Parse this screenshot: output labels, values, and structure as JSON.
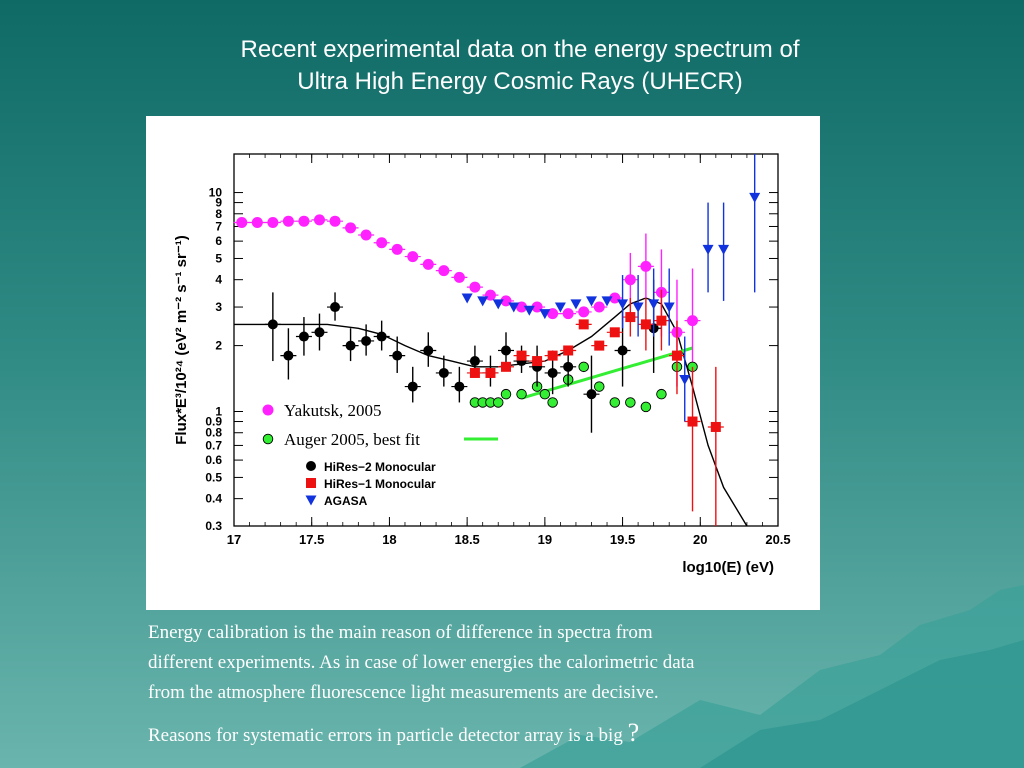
{
  "slide": {
    "title_line1": "Recent experimental data on the energy spectrum of",
    "title_line2": "Ultra High Energy Cosmic Rays (UHECR)",
    "caption": {
      "line1": "Energy calibration is the main reason of difference in spectra from",
      "line2": "different experiments. As in case of lower energies the calorimetric data",
      "line3": "from the atmosphere fluorescence light measurements are decisive.",
      "line4": "Reasons for systematic errors in particle detector array is a big",
      "line4_mark": "?"
    },
    "colors": {
      "background_top": "#0f6a66",
      "background_bottom": "#6ab5ad"
    }
  },
  "chart_data": {
    "type": "scatter",
    "xlabel": "log10(E) (eV)",
    "ylabel": "Flux*E³/10²⁴ (eV² m⁻² s⁻¹ sr⁻¹)",
    "xlim": [
      17,
      20.5
    ],
    "ylim": [
      0.3,
      15
    ],
    "yscale": "log",
    "xticks": [
      "17",
      "17.5",
      "18",
      "18.5",
      "19",
      "19.5",
      "20",
      "20.5"
    ],
    "yticks": [
      {
        "v": 0.3,
        "label": "0.3"
      },
      {
        "v": 0.4,
        "label": "0.4"
      },
      {
        "v": 0.5,
        "label": "0.5"
      },
      {
        "v": 0.6,
        "label": "0.6"
      },
      {
        "v": 0.7,
        "label": "0.7"
      },
      {
        "v": 0.8,
        "label": "0.8"
      },
      {
        "v": 0.9,
        "label": "0.9"
      },
      {
        "v": 1,
        "label": "1"
      },
      {
        "v": 2,
        "label": "2"
      },
      {
        "v": 3,
        "label": "3"
      },
      {
        "v": 4,
        "label": "4"
      },
      {
        "v": 5,
        "label": "5"
      },
      {
        "v": 6,
        "label": "6"
      },
      {
        "v": 7,
        "label": "7"
      },
      {
        "v": 8,
        "label": "8"
      },
      {
        "v": 9,
        "label": "9"
      },
      {
        "v": 10,
        "label": "10"
      }
    ],
    "legend": [
      {
        "label": "Yakutsk, 2005",
        "color": "#ff22ff",
        "marker": "circle",
        "style": "large"
      },
      {
        "label": "Auger 2005, best fit",
        "color": "#33ee33",
        "marker": "circle-outline",
        "style": "large",
        "line": true
      },
      {
        "label": "HiRes−2 Monocular",
        "color": "#000000",
        "marker": "circle",
        "style": "small"
      },
      {
        "label": "HiRes−1 Monocular",
        "color": "#ee1111",
        "marker": "square",
        "style": "small"
      },
      {
        "label": "AGASA",
        "color": "#1133dd",
        "marker": "triangle-down",
        "style": "small"
      }
    ],
    "series": [
      {
        "name": "Yakutsk, 2005",
        "color": "#ff22ff",
        "marker": "circle",
        "points": [
          {
            "x": 17.05,
            "y": 7.3
          },
          {
            "x": 17.15,
            "y": 7.3
          },
          {
            "x": 17.25,
            "y": 7.3
          },
          {
            "x": 17.35,
            "y": 7.4
          },
          {
            "x": 17.45,
            "y": 7.4
          },
          {
            "x": 17.55,
            "y": 7.5
          },
          {
            "x": 17.65,
            "y": 7.4
          },
          {
            "x": 17.75,
            "y": 6.9
          },
          {
            "x": 17.85,
            "y": 6.4
          },
          {
            "x": 17.95,
            "y": 5.9
          },
          {
            "x": 18.05,
            "y": 5.5
          },
          {
            "x": 18.15,
            "y": 5.1
          },
          {
            "x": 18.25,
            "y": 4.7
          },
          {
            "x": 18.35,
            "y": 4.4
          },
          {
            "x": 18.45,
            "y": 4.1
          },
          {
            "x": 18.55,
            "y": 3.7
          },
          {
            "x": 18.65,
            "y": 3.4
          },
          {
            "x": 18.75,
            "y": 3.2
          },
          {
            "x": 18.85,
            "y": 3.0
          },
          {
            "x": 18.95,
            "y": 3.0
          },
          {
            "x": 19.05,
            "y": 2.8
          },
          {
            "x": 19.15,
            "y": 2.8
          },
          {
            "x": 19.25,
            "y": 2.85
          },
          {
            "x": 19.35,
            "y": 3.0
          },
          {
            "x": 19.45,
            "y": 3.3
          },
          {
            "x": 19.55,
            "y": 4.0,
            "e": [
              3.0,
              5.3
            ]
          },
          {
            "x": 19.65,
            "y": 4.6,
            "e": [
              3.3,
              6.5
            ]
          },
          {
            "x": 19.75,
            "y": 3.5,
            "e": [
              2.2,
              5.5
            ]
          },
          {
            "x": 19.85,
            "y": 2.3,
            "e": [
              1.3,
              4.0
            ]
          },
          {
            "x": 19.95,
            "y": 2.6,
            "e": [
              1.5,
              4.5
            ]
          }
        ]
      },
      {
        "name": "Auger 2005, best fit",
        "color": "#33ee33",
        "marker": "circle-outline",
        "points": [
          {
            "x": 18.55,
            "y": 1.1
          },
          {
            "x": 18.6,
            "y": 1.1
          },
          {
            "x": 18.65,
            "y": 1.1
          },
          {
            "x": 18.7,
            "y": 1.1
          },
          {
            "x": 18.75,
            "y": 1.2
          },
          {
            "x": 18.85,
            "y": 1.2
          },
          {
            "x": 18.95,
            "y": 1.3
          },
          {
            "x": 19.0,
            "y": 1.2
          },
          {
            "x": 19.05,
            "y": 1.1
          },
          {
            "x": 19.15,
            "y": 1.4
          },
          {
            "x": 19.25,
            "y": 1.6
          },
          {
            "x": 19.35,
            "y": 1.3
          },
          {
            "x": 19.45,
            "y": 1.1
          },
          {
            "x": 19.55,
            "y": 1.1
          },
          {
            "x": 19.65,
            "y": 1.05
          },
          {
            "x": 19.75,
            "y": 1.2
          },
          {
            "x": 19.85,
            "y": 1.6
          },
          {
            "x": 19.95,
            "y": 1.6
          }
        ]
      },
      {
        "name": "HiRes−2 Monocular",
        "color": "#000000",
        "marker": "circle",
        "points": [
          {
            "x": 17.25,
            "y": 2.5,
            "e": [
              1.7,
              3.5
            ]
          },
          {
            "x": 17.35,
            "y": 1.8,
            "e": [
              1.4,
              2.4
            ]
          },
          {
            "x": 17.45,
            "y": 2.2,
            "e": [
              1.8,
              2.7
            ]
          },
          {
            "x": 17.55,
            "y": 2.3,
            "e": [
              1.9,
              2.8
            ]
          },
          {
            "x": 17.65,
            "y": 3.0,
            "e": [
              2.6,
              3.5
            ]
          },
          {
            "x": 17.75,
            "y": 2.0,
            "e": [
              1.7,
              2.4
            ]
          },
          {
            "x": 17.85,
            "y": 2.1,
            "e": [
              1.8,
              2.5
            ]
          },
          {
            "x": 17.95,
            "y": 2.2,
            "e": [
              1.9,
              2.6
            ]
          },
          {
            "x": 18.05,
            "y": 1.8,
            "e": [
              1.5,
              2.2
            ]
          },
          {
            "x": 18.15,
            "y": 1.3,
            "e": [
              1.1,
              1.6
            ]
          },
          {
            "x": 18.25,
            "y": 1.9,
            "e": [
              1.6,
              2.3
            ]
          },
          {
            "x": 18.35,
            "y": 1.5,
            "e": [
              1.3,
              1.8
            ]
          },
          {
            "x": 18.45,
            "y": 1.3,
            "e": [
              1.1,
              1.6
            ]
          },
          {
            "x": 18.55,
            "y": 1.7,
            "e": [
              1.5,
              2.0
            ]
          },
          {
            "x": 18.65,
            "y": 1.5,
            "e": [
              1.3,
              1.8
            ]
          },
          {
            "x": 18.75,
            "y": 1.9,
            "e": [
              1.6,
              2.3
            ]
          },
          {
            "x": 18.85,
            "y": 1.7,
            "e": [
              1.5,
              2.0
            ]
          },
          {
            "x": 18.95,
            "y": 1.6,
            "e": [
              1.3,
              2.0
            ]
          },
          {
            "x": 19.05,
            "y": 1.5,
            "e": [
              1.2,
              1.9
            ]
          },
          {
            "x": 19.15,
            "y": 1.6,
            "e": [
              1.3,
              2.0
            ]
          },
          {
            "x": 19.3,
            "y": 1.2,
            "e": [
              0.8,
              1.8
            ]
          },
          {
            "x": 19.5,
            "y": 1.9,
            "e": [
              1.3,
              2.9
            ]
          },
          {
            "x": 19.7,
            "y": 2.4,
            "e": [
              1.5,
              4.0
            ]
          }
        ]
      },
      {
        "name": "HiRes−1 Monocular",
        "color": "#ee1111",
        "marker": "square",
        "points": [
          {
            "x": 18.55,
            "y": 1.5
          },
          {
            "x": 18.65,
            "y": 1.5
          },
          {
            "x": 18.75,
            "y": 1.6
          },
          {
            "x": 18.85,
            "y": 1.8
          },
          {
            "x": 18.95,
            "y": 1.7
          },
          {
            "x": 19.05,
            "y": 1.8
          },
          {
            "x": 19.15,
            "y": 1.9
          },
          {
            "x": 19.25,
            "y": 2.5
          },
          {
            "x": 19.35,
            "y": 2.0
          },
          {
            "x": 19.45,
            "y": 2.3
          },
          {
            "x": 19.55,
            "y": 2.7,
            "e": [
              2.2,
              3.3
            ]
          },
          {
            "x": 19.65,
            "y": 2.5,
            "e": [
              1.9,
              3.3
            ]
          },
          {
            "x": 19.75,
            "y": 2.6,
            "e": [
              1.9,
              3.6
            ]
          },
          {
            "x": 19.85,
            "y": 1.8,
            "e": [
              1.2,
              2.6
            ]
          },
          {
            "x": 19.95,
            "y": 0.9,
            "e": [
              0.35,
              1.6
            ]
          },
          {
            "x": 20.1,
            "y": 0.85,
            "e": [
              0.3,
              1.6
            ]
          }
        ]
      },
      {
        "name": "AGASA",
        "color": "#1133dd",
        "marker": "triangle-down",
        "points": [
          {
            "x": 18.5,
            "y": 3.3
          },
          {
            "x": 18.6,
            "y": 3.2
          },
          {
            "x": 18.7,
            "y": 3.1
          },
          {
            "x": 18.8,
            "y": 3.0
          },
          {
            "x": 18.9,
            "y": 2.9
          },
          {
            "x": 19.0,
            "y": 2.8
          },
          {
            "x": 19.1,
            "y": 3.0
          },
          {
            "x": 19.2,
            "y": 3.1
          },
          {
            "x": 19.3,
            "y": 3.2
          },
          {
            "x": 19.4,
            "y": 3.2
          },
          {
            "x": 19.5,
            "y": 3.1,
            "e": [
              2.4,
              4.2
            ]
          },
          {
            "x": 19.6,
            "y": 3.0,
            "e": [
              2.2,
              4.2
            ]
          },
          {
            "x": 19.7,
            "y": 3.1,
            "e": [
              2.2,
              4.5
            ]
          },
          {
            "x": 19.8,
            "y": 3.0,
            "e": [
              2.0,
              4.5
            ]
          },
          {
            "x": 19.9,
            "y": 1.4,
            "e": [
              0.9,
              2.2
            ]
          },
          {
            "x": 20.05,
            "y": 5.5,
            "e": [
              3.5,
              9.0
            ]
          },
          {
            "x": 20.15,
            "y": 5.5,
            "e": [
              3.2,
              9.0
            ]
          },
          {
            "x": 20.35,
            "y": 9.5,
            "e": [
              3.5,
              15.0
            ]
          }
        ]
      }
    ],
    "fits": [
      {
        "name": "HiRes−2 Monocular fit",
        "color": "#000000",
        "points": [
          [
            17.0,
            2.5
          ],
          [
            17.4,
            2.5
          ],
          [
            17.6,
            2.5
          ],
          [
            17.8,
            2.4
          ],
          [
            17.95,
            2.25
          ],
          [
            18.1,
            2.0
          ],
          [
            18.25,
            1.8
          ],
          [
            18.4,
            1.7
          ],
          [
            18.55,
            1.6
          ],
          [
            18.7,
            1.6
          ],
          [
            18.85,
            1.65
          ],
          [
            19.0,
            1.7
          ],
          [
            19.15,
            1.9
          ],
          [
            19.3,
            2.2
          ],
          [
            19.45,
            2.7
          ],
          [
            19.55,
            3.1
          ],
          [
            19.65,
            3.3
          ],
          [
            19.75,
            3.1
          ],
          [
            19.85,
            2.3
          ],
          [
            19.95,
            1.3
          ],
          [
            20.05,
            0.7
          ],
          [
            20.15,
            0.45
          ],
          [
            20.3,
            0.3
          ]
        ]
      },
      {
        "name": "Auger 2005, best fit",
        "color": "#33ee33",
        "points": [
          [
            18.85,
            1.15
          ],
          [
            19.95,
            1.95
          ]
        ]
      }
    ]
  }
}
